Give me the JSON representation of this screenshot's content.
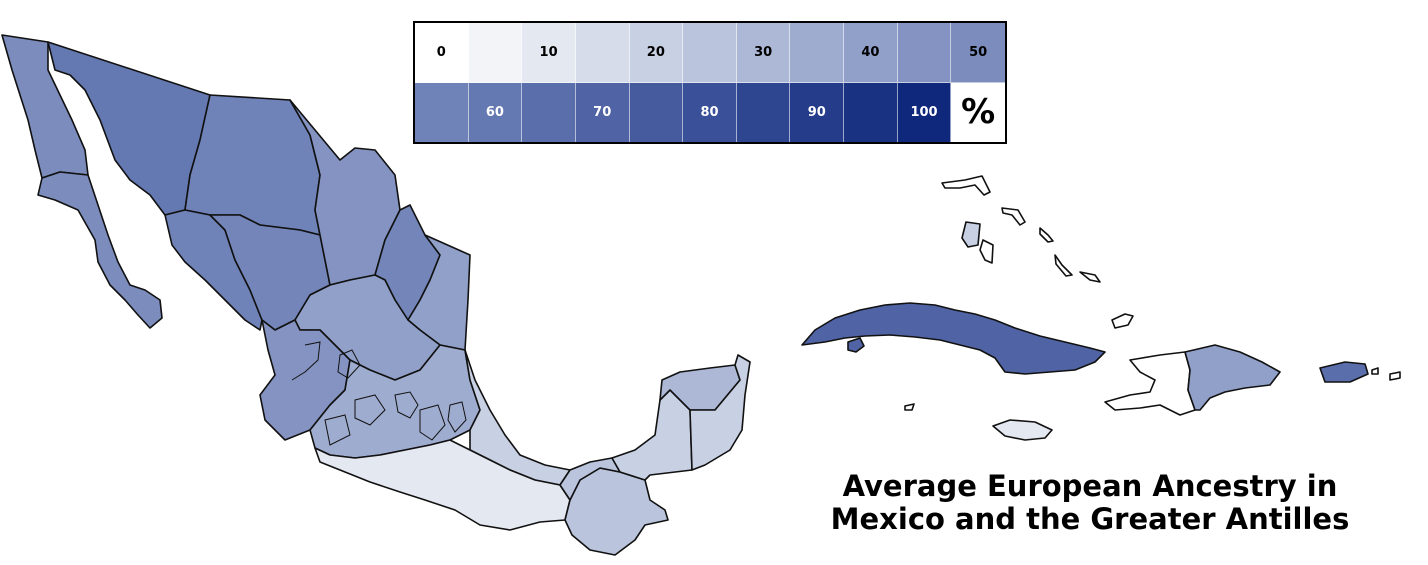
{
  "title": {
    "line1": "Average European Ancestry in",
    "line2": "Mexico and the Greater Antilles"
  },
  "legend": {
    "cells": [
      {
        "label": "0",
        "color": "#ffffff"
      },
      {
        "label": "",
        "color": "#f2f4f8"
      },
      {
        "label": "10",
        "color": "#e4e8f1"
      },
      {
        "label": "",
        "color": "#d6dcea"
      },
      {
        "label": "20",
        "color": "#c8d0e3"
      },
      {
        "label": "",
        "color": "#bac5dd"
      },
      {
        "label": "30",
        "color": "#acb8d6"
      },
      {
        "label": "",
        "color": "#9eacd0"
      },
      {
        "label": "40",
        "color": "#90a0c9"
      },
      {
        "label": "",
        "color": "#8493c2"
      },
      {
        "label": "50",
        "color": "#7b8cbd"
      },
      {
        "label": "",
        "color": "#6f83b8"
      },
      {
        "label": "60",
        "color": "#6478b1"
      },
      {
        "label": "",
        "color": "#5a6eab"
      },
      {
        "label": "70",
        "color": "#5064a5"
      },
      {
        "label": "",
        "color": "#465a9e"
      },
      {
        "label": "80",
        "color": "#3a5098"
      },
      {
        "label": "",
        "color": "#2e4690"
      },
      {
        "label": "90",
        "color": "#243c89"
      },
      {
        "label": "",
        "color": "#1a3282"
      },
      {
        "label": "100",
        "color": "#10287c"
      },
      {
        "label": "%",
        "color": "#ffffff"
      }
    ]
  },
  "regions": {
    "baja_california_north": {
      "value": 50,
      "color": "#7b8cbd"
    },
    "baja_california_south": {
      "value": 50,
      "color": "#7b8cbd"
    },
    "sonora": {
      "value": 65,
      "color": "#6478b1"
    },
    "chihuahua": {
      "value": 60,
      "color": "#6f83b8"
    },
    "sinaloa": {
      "value": 60,
      "color": "#6f83b8"
    },
    "durango": {
      "value": 55,
      "color": "#7485ba"
    },
    "coahuila": {
      "value": 45,
      "color": "#8493c2"
    },
    "nuevo_leon": {
      "value": 55,
      "color": "#7485ba"
    },
    "tamaulipas": {
      "value": 40,
      "color": "#90a0c9"
    },
    "zacatecas": {
      "value": 40,
      "color": "#90a0c9"
    },
    "nayarit_jalisco": {
      "value": 45,
      "color": "#8493c2"
    },
    "central_states": {
      "value": 35,
      "color": "#9eacd0"
    },
    "veracruz": {
      "value": 20,
      "color": "#c8d0e3"
    },
    "guerrero_oaxaca": {
      "value": 10,
      "color": "#e4e8f1"
    },
    "chiapas": {
      "value": 25,
      "color": "#bac5dd"
    },
    "tabasco": {
      "value": 25,
      "color": "#bac5dd"
    },
    "campeche": {
      "value": 20,
      "color": "#c8d0e3"
    },
    "yucatan": {
      "value": 30,
      "color": "#acb8d6"
    },
    "quintana_roo": {
      "value": 20,
      "color": "#c8d0e3"
    },
    "cuba": {
      "value": 70,
      "color": "#5064a5"
    },
    "haiti": {
      "value": 0,
      "color": "#ffffff"
    },
    "dominican_republic": {
      "value": 40,
      "color": "#90a0c9"
    },
    "puerto_rico": {
      "value": 65,
      "color": "#5a6eab"
    },
    "jamaica": {
      "value": 10,
      "color": "#e4e8f1"
    },
    "bahamas_andros": {
      "value": 20,
      "color": "#c8d0e3"
    }
  }
}
